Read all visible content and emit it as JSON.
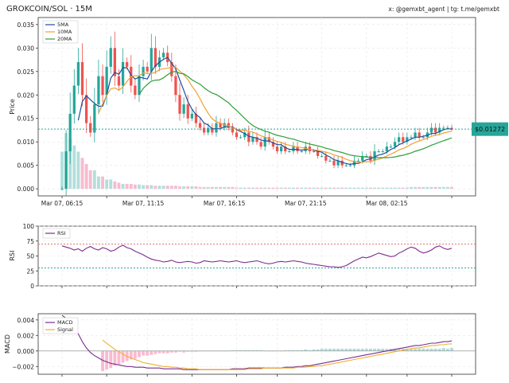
{
  "header": {
    "title": "GROKCOIN/SOL · 15M",
    "credit": "x: @gemxbt_agent | tg: t.me/gemxbt"
  },
  "price_tag": "$0.01272",
  "colors": {
    "up": "#26a69a",
    "down": "#ef5350",
    "ma5": "#1f4e9c",
    "ma10": "#f0a030",
    "ma20": "#2e9e3a",
    "rsi": "#7b2d8e",
    "macd": "#7b2d8e",
    "signal": "#f0b030",
    "hist_pos": "#b2dfdb",
    "hist_neg": "#f8bbd0",
    "vol_up": "#b2dfdb",
    "vol_down": "#f8bbd0",
    "current": "#26a69a",
    "rsi_upper": "#e57373",
    "rsi_lower": "#26a69a"
  },
  "chart_data": [
    {
      "type": "candlestick",
      "ylabel": "Price",
      "ylim": [
        -0.0015,
        0.0365
      ],
      "yticks": [
        0.0,
        0.005,
        0.01,
        0.015,
        0.02,
        0.025,
        0.03,
        0.035
      ],
      "ytick_labels": [
        "0.000",
        "0.005",
        "0.010",
        "0.015",
        "0.020",
        "0.025",
        "0.030",
        "0.035"
      ],
      "xtick_labels": [
        "Mar 07, 06:15",
        "Mar 07, 11:15",
        "Mar 07, 16:15",
        "Mar 07, 21:15",
        "Mar 08, 02:15"
      ],
      "xtick_index": [
        0,
        20,
        40,
        60,
        80
      ],
      "current_price": 0.01272,
      "legend": [
        "5MA",
        "10MA",
        "20MA"
      ],
      "legend_position": "top-left",
      "grid": true,
      "close": [
        0.0,
        0.008,
        0.016,
        0.022,
        0.027,
        0.02,
        0.014,
        0.012,
        0.018,
        0.024,
        0.02,
        0.026,
        0.03,
        0.024,
        0.022,
        0.027,
        0.026,
        0.022,
        0.02,
        0.024,
        0.026,
        0.025,
        0.03,
        0.026,
        0.028,
        0.029,
        0.027,
        0.024,
        0.02,
        0.016,
        0.018,
        0.015,
        0.016,
        0.014,
        0.013,
        0.012,
        0.013,
        0.012,
        0.014,
        0.013,
        0.014,
        0.013,
        0.012,
        0.011,
        0.011,
        0.012,
        0.01,
        0.011,
        0.01,
        0.009,
        0.011,
        0.01,
        0.009,
        0.008,
        0.009,
        0.008,
        0.008,
        0.009,
        0.008,
        0.008,
        0.009,
        0.008,
        0.008,
        0.007,
        0.007,
        0.006,
        0.006,
        0.005,
        0.006,
        0.005,
        0.005,
        0.005,
        0.006,
        0.006,
        0.007,
        0.007,
        0.006,
        0.008,
        0.008,
        0.008,
        0.009,
        0.009,
        0.01,
        0.011,
        0.01,
        0.011,
        0.011,
        0.012,
        0.011,
        0.011,
        0.012,
        0.013,
        0.012,
        0.013,
        0.013,
        0.013,
        0.0127
      ],
      "volume": [
        6,
        9,
        8,
        7,
        6,
        5,
        4,
        3,
        3,
        2,
        2,
        1.5,
        1.5,
        1.2,
        1.0,
        0.8,
        0.8,
        0.8,
        0.7,
        0.7,
        0.6,
        0.6,
        0.6,
        0.5,
        0.5,
        0.5,
        0.5,
        0.5,
        0.5,
        0.4,
        0.4,
        0.4,
        0.4,
        0.4,
        0.3,
        0.3,
        0.3,
        0.3,
        0.3,
        0.3,
        0.3,
        0.3,
        0.3,
        0.2,
        0.2,
        0.2,
        0.2,
        0.2,
        0.2,
        0.2,
        0.2,
        0.2,
        0.2,
        0.2,
        0.2,
        0.2,
        0.2,
        0.2,
        0.2,
        0.2,
        0.2,
        0.2,
        0.2,
        0.2,
        0.2,
        0.2,
        0.2,
        0.2,
        0.2,
        0.2,
        0.2,
        0.2,
        0.2,
        0.2,
        0.2,
        0.2,
        0.2,
        0.2,
        0.2,
        0.2,
        0.2,
        0.2,
        0.2,
        0.2,
        0.2,
        0.2,
        0.3,
        0.3,
        0.3,
        0.3,
        0.3,
        0.3,
        0.3,
        0.3,
        0.3,
        0.3,
        0.3
      ]
    },
    {
      "type": "line",
      "ylabel": "RSI",
      "ylim": [
        0,
        100
      ],
      "yticks": [
        0,
        25,
        50,
        75,
        100
      ],
      "ytick_labels": [
        "0",
        "25",
        "50",
        "75",
        "100"
      ],
      "levels": [
        70,
        30
      ],
      "legend": [
        "RSI"
      ],
      "legend_position": "top-left",
      "grid": true,
      "values": [
        67,
        65,
        63,
        60,
        62,
        58,
        63,
        66,
        62,
        60,
        64,
        62,
        58,
        60,
        65,
        68,
        64,
        62,
        58,
        55,
        52,
        48,
        45,
        43,
        42,
        40,
        41,
        43,
        40,
        39,
        40,
        41,
        40,
        38,
        39,
        42,
        41,
        40,
        41,
        42,
        41,
        40,
        41,
        42,
        40,
        39,
        40,
        41,
        42,
        40,
        38,
        37,
        38,
        40,
        41,
        40,
        41,
        42,
        41,
        40,
        38,
        37,
        36,
        35,
        34,
        33,
        32,
        32,
        31,
        32,
        34,
        38,
        42,
        45,
        48,
        47,
        49,
        52,
        55,
        53,
        51,
        49,
        50,
        55,
        58,
        62,
        65,
        63,
        58,
        55,
        57,
        60,
        65,
        67,
        63,
        61,
        63
      ]
    },
    {
      "type": "macd",
      "ylabel": "MACD",
      "ylim": [
        -0.003,
        0.0048
      ],
      "yticks": [
        -0.002,
        0.0,
        0.002,
        0.004
      ],
      "ytick_labels": [
        "−0.002",
        "0.000",
        "0.002",
        "0.004"
      ],
      "legend": [
        "MACD",
        "Signal"
      ],
      "legend_position": "top-left",
      "grid": true,
      "macd": [
        0.0046,
        0.0042,
        0.0036,
        0.003,
        0.0022,
        0.0012,
        0.0004,
        -0.0002,
        -0.0006,
        -0.0009,
        -0.0012,
        -0.0014,
        -0.0016,
        -0.0017,
        -0.0018,
        -0.0019,
        -0.002,
        -0.002,
        -0.0021,
        -0.0021,
        -0.0021,
        -0.0022,
        -0.0022,
        -0.0022,
        -0.0022,
        -0.0023,
        -0.0023,
        -0.0023,
        -0.0023,
        -0.0023,
        -0.0024,
        -0.0024,
        -0.0024,
        -0.0024,
        -0.0024,
        -0.0024,
        -0.0024,
        -0.0024,
        -0.0024,
        -0.0024,
        -0.0024,
        -0.0024,
        -0.0023,
        -0.0023,
        -0.0023,
        -0.0023,
        -0.0022,
        -0.0022,
        -0.0022,
        -0.0022,
        -0.0022,
        -0.0022,
        -0.0022,
        -0.0022,
        -0.0022,
        -0.0021,
        -0.0021,
        -0.0021,
        -0.002,
        -0.002,
        -0.0019,
        -0.0019,
        -0.0018,
        -0.0017,
        -0.0016,
        -0.0015,
        -0.0014,
        -0.0013,
        -0.0012,
        -0.0011,
        -0.001,
        -0.0009,
        -0.0008,
        -0.0007,
        -0.0006,
        -0.0005,
        -0.0004,
        -0.0003,
        -0.0002,
        -0.0001,
        0.0,
        0.0001,
        0.0002,
        0.0003,
        0.0004,
        0.0005,
        0.0006,
        0.0007,
        0.0007,
        0.0008,
        0.0009,
        0.001,
        0.001,
        0.0011,
        0.0012,
        0.0012,
        0.0013
      ],
      "signal": [
        null,
        null,
        null,
        null,
        null,
        null,
        null,
        null,
        null,
        null,
        0.0014,
        0.001,
        0.0006,
        0.0002,
        -0.0001,
        -0.0004,
        -0.0007,
        -0.0009,
        -0.0011,
        -0.0013,
        -0.0015,
        -0.0016,
        -0.0017,
        -0.0018,
        -0.0019,
        -0.002,
        -0.002,
        -0.0021,
        -0.0021,
        -0.0022,
        -0.0022,
        -0.0023,
        -0.0023,
        -0.0023,
        -0.0024,
        -0.0024,
        -0.0024,
        -0.0024,
        -0.0024,
        -0.0024,
        -0.0024,
        -0.0024,
        -0.0024,
        -0.0024,
        -0.0024,
        -0.0024,
        -0.0023,
        -0.0023,
        -0.0023,
        -0.0023,
        -0.0022,
        -0.0022,
        -0.0022,
        -0.0022,
        -0.0022,
        -0.0022,
        -0.0022,
        -0.0022,
        -0.0021,
        -0.0021,
        -0.0021,
        -0.002,
        -0.002,
        -0.0019,
        -0.0019,
        -0.0018,
        -0.0017,
        -0.0016,
        -0.0015,
        -0.0014,
        -0.0013,
        -0.0012,
        -0.0011,
        -0.001,
        -0.0009,
        -0.0008,
        -0.0007,
        -0.0006,
        -0.0005,
        -0.0004,
        -0.0003,
        -0.0002,
        -0.0001,
        0.0,
        0.0001,
        0.0002,
        0.0003,
        0.0004,
        0.0004,
        0.0005,
        0.0006,
        0.0007,
        0.0007,
        0.0008,
        0.0008,
        0.0009,
        0.0009
      ]
    }
  ]
}
